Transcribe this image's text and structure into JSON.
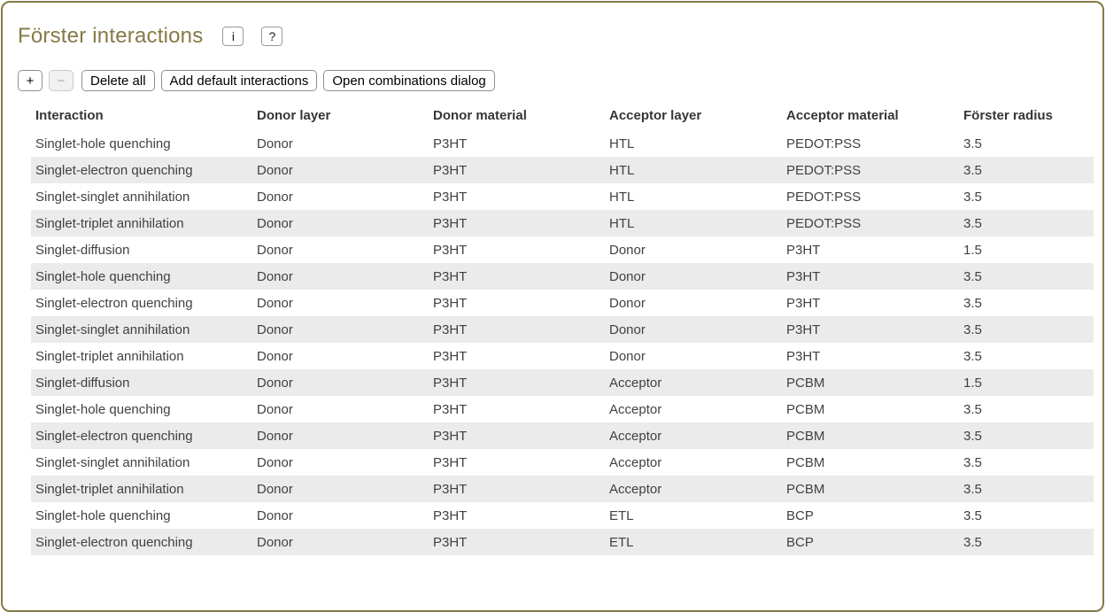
{
  "colors": {
    "accent": "#847a45",
    "zebra_row": "#ebebeb",
    "row_text": "#414141",
    "header_text": "#363636"
  },
  "header": {
    "title": "Förster interactions",
    "info_button_label": "i",
    "help_button_label": "?"
  },
  "toolbar": {
    "add_label": "+",
    "remove_label": "−",
    "delete_all_label": "Delete all",
    "add_default_label": "Add default interactions",
    "open_combinations_label": "Open combinations dialog"
  },
  "table": {
    "columns": [
      "Interaction",
      "Donor layer",
      "Donor material",
      "Acceptor layer",
      "Acceptor material",
      "Förster radius"
    ],
    "rows": [
      [
        "Singlet-hole quenching",
        "Donor",
        "P3HT",
        "HTL",
        "PEDOT:PSS",
        "3.5"
      ],
      [
        "Singlet-electron quenching",
        "Donor",
        "P3HT",
        "HTL",
        "PEDOT:PSS",
        "3.5"
      ],
      [
        "Singlet-singlet annihilation",
        "Donor",
        "P3HT",
        "HTL",
        "PEDOT:PSS",
        "3.5"
      ],
      [
        "Singlet-triplet annihilation",
        "Donor",
        "P3HT",
        "HTL",
        "PEDOT:PSS",
        "3.5"
      ],
      [
        "Singlet-diffusion",
        "Donor",
        "P3HT",
        "Donor",
        "P3HT",
        "1.5"
      ],
      [
        "Singlet-hole quenching",
        "Donor",
        "P3HT",
        "Donor",
        "P3HT",
        "3.5"
      ],
      [
        "Singlet-electron quenching",
        "Donor",
        "P3HT",
        "Donor",
        "P3HT",
        "3.5"
      ],
      [
        "Singlet-singlet annihilation",
        "Donor",
        "P3HT",
        "Donor",
        "P3HT",
        "3.5"
      ],
      [
        "Singlet-triplet annihilation",
        "Donor",
        "P3HT",
        "Donor",
        "P3HT",
        "3.5"
      ],
      [
        "Singlet-diffusion",
        "Donor",
        "P3HT",
        "Acceptor",
        "PCBM",
        "1.5"
      ],
      [
        "Singlet-hole quenching",
        "Donor",
        "P3HT",
        "Acceptor",
        "PCBM",
        "3.5"
      ],
      [
        "Singlet-electron quenching",
        "Donor",
        "P3HT",
        "Acceptor",
        "PCBM",
        "3.5"
      ],
      [
        "Singlet-singlet annihilation",
        "Donor",
        "P3HT",
        "Acceptor",
        "PCBM",
        "3.5"
      ],
      [
        "Singlet-triplet annihilation",
        "Donor",
        "P3HT",
        "Acceptor",
        "PCBM",
        "3.5"
      ],
      [
        "Singlet-hole quenching",
        "Donor",
        "P3HT",
        "ETL",
        "BCP",
        "3.5"
      ],
      [
        "Singlet-electron quenching",
        "Donor",
        "P3HT",
        "ETL",
        "BCP",
        "3.5"
      ]
    ]
  }
}
